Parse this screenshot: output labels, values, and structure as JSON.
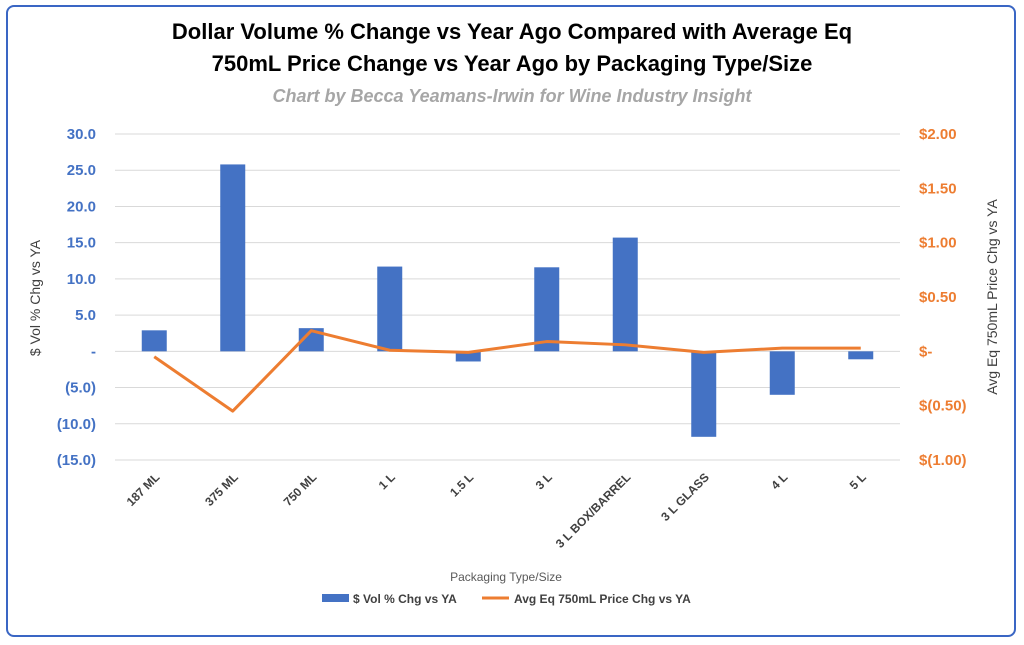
{
  "title_line1": "Dollar Volume % Change vs Year Ago Compared with Average Eq",
  "title_line2": "750mL Price Change vs Year Ago by Packaging Type/Size",
  "subtitle": "Chart by Becca Yeamans-Irwin for Wine Industry Insight",
  "colors": {
    "bar": "#4472c4",
    "line": "#ed7d31",
    "frame": "#3a66c4",
    "grid": "#d9d9d9"
  },
  "chart_data": {
    "type": "bar+line",
    "title": "Dollar Volume % Change vs Year Ago Compared with Average Eq 750mL Price Change vs Year Ago by Packaging Type/Size",
    "xlabel": "Packaging Type/Size",
    "ylabel_left": "$ Vol % Chg vs YA",
    "ylabel_right": "Avg Eq 750mL Price Chg vs YA",
    "categories": [
      "187 ML",
      "375 ML",
      "750 ML",
      "1 L",
      "1.5 L",
      "3 L",
      "3 L BOX/BARREL",
      "3 L GLASS",
      "4 L",
      "5 L"
    ],
    "left_axis": {
      "min": -15,
      "max": 30,
      "step": 5,
      "tick_labels": [
        "(15.0)",
        "(10.0)",
        "(5.0)",
        "-",
        "5.0",
        "10.0",
        "15.0",
        "20.0",
        "25.0",
        "30.0"
      ]
    },
    "right_axis": {
      "min": -1.0,
      "max": 2.0,
      "step": 0.5,
      "tick_labels": [
        "$(1.00)",
        "$(0.50)",
        "$-",
        "$0.50",
        "$1.00",
        "$1.50",
        "$2.00"
      ]
    },
    "series": [
      {
        "name": "$ Vol % Chg vs YA",
        "type": "bar",
        "axis": "left",
        "values": [
          2.9,
          25.8,
          3.2,
          11.7,
          -1.4,
          11.6,
          15.7,
          -11.8,
          -6.0,
          -1.1
        ]
      },
      {
        "name": "Avg Eq 750mL Price Chg vs YA",
        "type": "line",
        "axis": "right",
        "values": [
          -0.05,
          -0.55,
          0.19,
          0.01,
          -0.01,
          0.09,
          0.06,
          -0.01,
          0.03,
          0.03
        ]
      }
    ],
    "legend": {
      "position": "bottom",
      "items": [
        "$ Vol % Chg vs YA",
        "Avg Eq 750mL Price Chg vs YA"
      ]
    }
  }
}
